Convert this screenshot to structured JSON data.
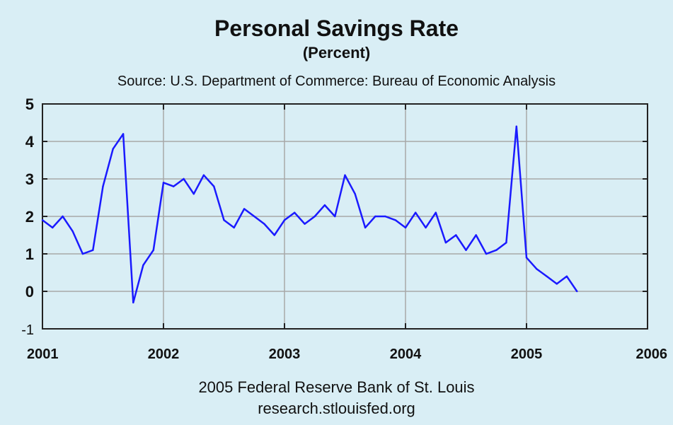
{
  "header": {
    "title": "Personal Savings Rate",
    "subtitle": "(Percent)",
    "source": "Source: U.S. Department of Commerce: Bureau of Economic Analysis"
  },
  "footer": {
    "line1": "2005 Federal Reserve Bank of St. Louis",
    "line2": "research.stlouisfed.org"
  },
  "colors": {
    "background": "#d9eef5",
    "line": "#1a1aff",
    "grid": "#a8a8a8"
  },
  "chart_data": {
    "type": "line",
    "title": "Personal Savings Rate",
    "subtitle": "(Percent)",
    "xlabel": "",
    "ylabel": "",
    "xlim": [
      2001,
      2006
    ],
    "ylim": [
      -1,
      5
    ],
    "grid": true,
    "x_ticks": [
      "2001",
      "2002",
      "2003",
      "2004",
      "2005",
      "2006"
    ],
    "y_ticks": [
      "-1",
      "0",
      "1",
      "2",
      "3",
      "4",
      "5"
    ],
    "series": [
      {
        "name": "",
        "x": [
          2001.0,
          2001.083,
          2001.167,
          2001.25,
          2001.333,
          2001.417,
          2001.5,
          2001.583,
          2001.667,
          2001.75,
          2001.833,
          2001.917,
          2002.0,
          2002.083,
          2002.167,
          2002.25,
          2002.333,
          2002.417,
          2002.5,
          2002.583,
          2002.667,
          2002.75,
          2002.833,
          2002.917,
          2003.0,
          2003.083,
          2003.167,
          2003.25,
          2003.333,
          2003.417,
          2003.5,
          2003.583,
          2003.667,
          2003.75,
          2003.833,
          2003.917,
          2004.0,
          2004.083,
          2004.167,
          2004.25,
          2004.333,
          2004.417,
          2004.5,
          2004.583,
          2004.667,
          2004.75,
          2004.833,
          2004.917,
          2005.0,
          2005.083,
          2005.167,
          2005.25,
          2005.333,
          2005.417
        ],
        "values": [
          1.9,
          1.7,
          2.0,
          1.6,
          1.0,
          1.1,
          2.8,
          3.8,
          4.2,
          -0.3,
          0.7,
          1.1,
          2.9,
          2.8,
          3.0,
          2.6,
          3.1,
          2.8,
          1.9,
          1.7,
          2.2,
          2.0,
          1.8,
          1.5,
          1.9,
          2.1,
          1.8,
          2.0,
          2.3,
          2.0,
          3.1,
          2.6,
          1.7,
          2.0,
          2.0,
          1.9,
          1.7,
          2.1,
          1.7,
          2.1,
          1.3,
          1.5,
          1.1,
          1.5,
          1.0,
          1.1,
          1.3,
          4.4,
          0.9,
          0.6,
          0.4,
          0.2,
          0.4,
          0.0
        ]
      }
    ]
  }
}
